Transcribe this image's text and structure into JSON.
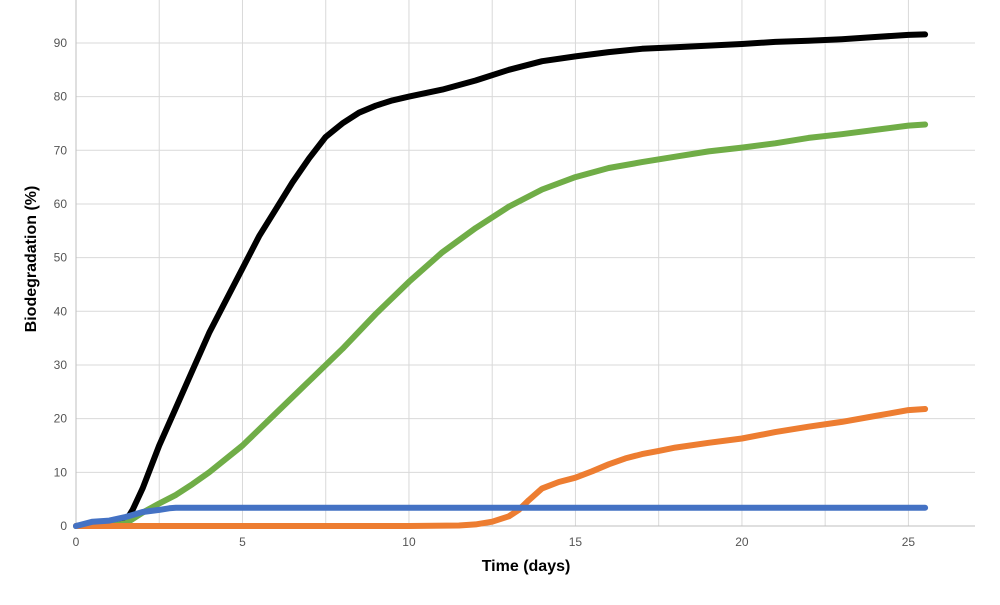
{
  "chart_data": {
    "type": "line",
    "title": "",
    "xlabel": "Time (days)",
    "ylabel": "Biodegradation (%)",
    "xlim": [
      0,
      27
    ],
    "ylim": [
      0,
      98
    ],
    "xticks": [
      0,
      5,
      10,
      15,
      20,
      25
    ],
    "yticks": [
      0,
      10,
      20,
      30,
      40,
      50,
      60,
      70,
      80,
      90
    ],
    "grid": true,
    "series": [
      {
        "color": "#000000",
        "x": [
          0,
          0.5,
          1,
          1.5,
          1.7,
          2,
          2.5,
          3,
          3.5,
          4,
          4.5,
          5,
          5.5,
          6,
          6.5,
          7,
          7.5,
          8,
          8.5,
          9,
          9.5,
          10,
          11,
          12,
          13,
          14,
          15,
          16,
          17,
          18,
          19,
          20,
          21,
          22,
          23,
          24,
          25,
          25.5
        ],
        "y": [
          0,
          0.3,
          0.5,
          1,
          3,
          7,
          15,
          22,
          29,
          36,
          42,
          48,
          54,
          59,
          64,
          68.5,
          72.5,
          75,
          77,
          78.3,
          79.3,
          80,
          81.3,
          83,
          85,
          86.6,
          87.5,
          88.3,
          88.9,
          89.2,
          89.5,
          89.8,
          90.2,
          90.4,
          90.7,
          91.1,
          91.5,
          91.6
        ]
      },
      {
        "color": "#70ad47",
        "x": [
          0,
          1,
          1.5,
          2,
          2.5,
          3,
          3.5,
          4,
          5,
          6,
          7,
          8,
          9,
          10,
          11,
          12,
          13,
          14,
          15,
          16,
          17,
          18,
          19,
          20,
          21,
          22,
          23,
          24,
          25,
          25.5
        ],
        "y": [
          0,
          0,
          0.5,
          2.5,
          4.2,
          5.8,
          7.8,
          10,
          15,
          21,
          27,
          33,
          39.5,
          45.5,
          51,
          55.5,
          59.5,
          62.7,
          65,
          66.7,
          67.8,
          68.8,
          69.8,
          70.5,
          71.3,
          72.3,
          73,
          73.8,
          74.6,
          74.8
        ]
      },
      {
        "color": "#ed7d31",
        "x": [
          0,
          5,
          10,
          11.5,
          12,
          12.5,
          13,
          13.3,
          13.6,
          14,
          14.5,
          15,
          15.5,
          16,
          16.5,
          17,
          17.5,
          18,
          19,
          20,
          21,
          22,
          23,
          24,
          25,
          25.5
        ],
        "y": [
          0,
          0,
          0,
          0.1,
          0.3,
          0.8,
          1.8,
          3,
          4.8,
          7,
          8.2,
          9,
          10.2,
          11.5,
          12.6,
          13.4,
          14,
          14.6,
          15.5,
          16.3,
          17.5,
          18.5,
          19.4,
          20.5,
          21.6,
          21.8
        ]
      },
      {
        "color": "#4472c4",
        "x": [
          0,
          0.5,
          1,
          1.5,
          2,
          2.5,
          2.8,
          3,
          10,
          20,
          25.5
        ],
        "y": [
          0,
          0.8,
          1,
          1.7,
          2.6,
          3,
          3.3,
          3.4,
          3.4,
          3.4,
          3.4
        ]
      }
    ]
  }
}
